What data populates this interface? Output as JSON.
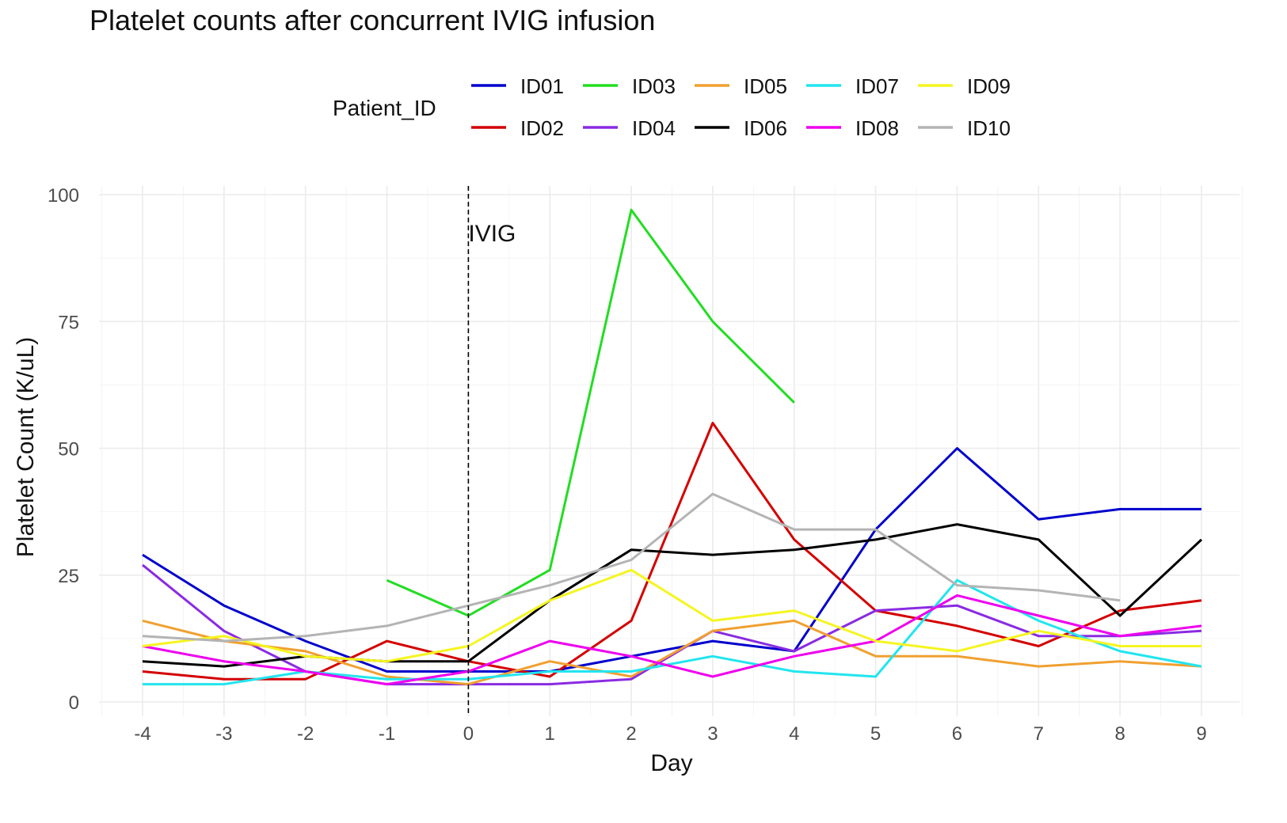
{
  "chart_data": {
    "type": "line",
    "title": "Platelet counts after concurrent IVIG infusion",
    "xlabel": "Day",
    "ylabel": "Platelet Count (K/uL)",
    "xlim": [
      -4,
      9
    ],
    "ylim": [
      0,
      100
    ],
    "x_ticks": [
      -4,
      -3,
      -2,
      -1,
      0,
      1,
      2,
      3,
      4,
      5,
      6,
      7,
      8,
      9
    ],
    "y_ticks": [
      0,
      25,
      50,
      75,
      100
    ],
    "grid": true,
    "legend": {
      "title": "Patient_ID",
      "placement": "top"
    },
    "annotation": {
      "label": "IVIG",
      "x": 0,
      "line_style": "dashed"
    },
    "x": [
      -4,
      -3,
      -2,
      -1,
      0,
      1,
      2,
      3,
      4,
      5,
      6,
      7,
      8,
      9
    ],
    "series": [
      {
        "name": "ID01",
        "color": "#0000cd",
        "values": [
          29,
          19,
          12,
          6,
          6,
          6,
          9,
          12,
          10,
          34,
          50,
          36,
          38,
          38
        ]
      },
      {
        "name": "ID02",
        "color": "#d40000",
        "values": [
          6,
          4.5,
          4.5,
          12,
          8,
          5,
          16,
          55,
          32,
          18,
          15,
          11,
          18,
          20
        ]
      },
      {
        "name": "ID03",
        "color": "#22dd22",
        "values": [
          null,
          null,
          null,
          24,
          17,
          26,
          97,
          75,
          59,
          null,
          null,
          null,
          null,
          null
        ]
      },
      {
        "name": "ID04",
        "color": "#8a2be2",
        "values": [
          27,
          14,
          6,
          3.5,
          3.5,
          3.5,
          4.5,
          14,
          10,
          18,
          19,
          13,
          13,
          14
        ]
      },
      {
        "name": "ID05",
        "color": "#f0a030",
        "values": [
          16,
          12,
          10,
          5,
          3.5,
          8,
          5,
          14,
          16,
          9,
          9,
          7,
          8,
          7
        ]
      },
      {
        "name": "ID06",
        "color": "#000000",
        "values": [
          8,
          7,
          9,
          8,
          8,
          20,
          30,
          29,
          30,
          32,
          35,
          32,
          17,
          32
        ]
      },
      {
        "name": "ID07",
        "color": "#22e5ee",
        "values": [
          3.5,
          3.5,
          6,
          4.5,
          4.5,
          6,
          6,
          9,
          6,
          5,
          24,
          16,
          10,
          7
        ]
      },
      {
        "name": "ID08",
        "color": "#ee00ee",
        "values": [
          11,
          8,
          6,
          3.5,
          6,
          12,
          9,
          5,
          9,
          12,
          21,
          17,
          13,
          15
        ]
      },
      {
        "name": "ID09",
        "color": "#f5f520",
        "values": [
          11,
          13,
          9,
          8,
          11,
          20,
          26,
          16,
          18,
          12,
          10,
          14,
          11,
          11
        ]
      },
      {
        "name": "ID10",
        "color": "#b4b4b4",
        "values": [
          13,
          12,
          13,
          15,
          19,
          23,
          28,
          41,
          34,
          34,
          23,
          22,
          20,
          null
        ]
      }
    ]
  }
}
